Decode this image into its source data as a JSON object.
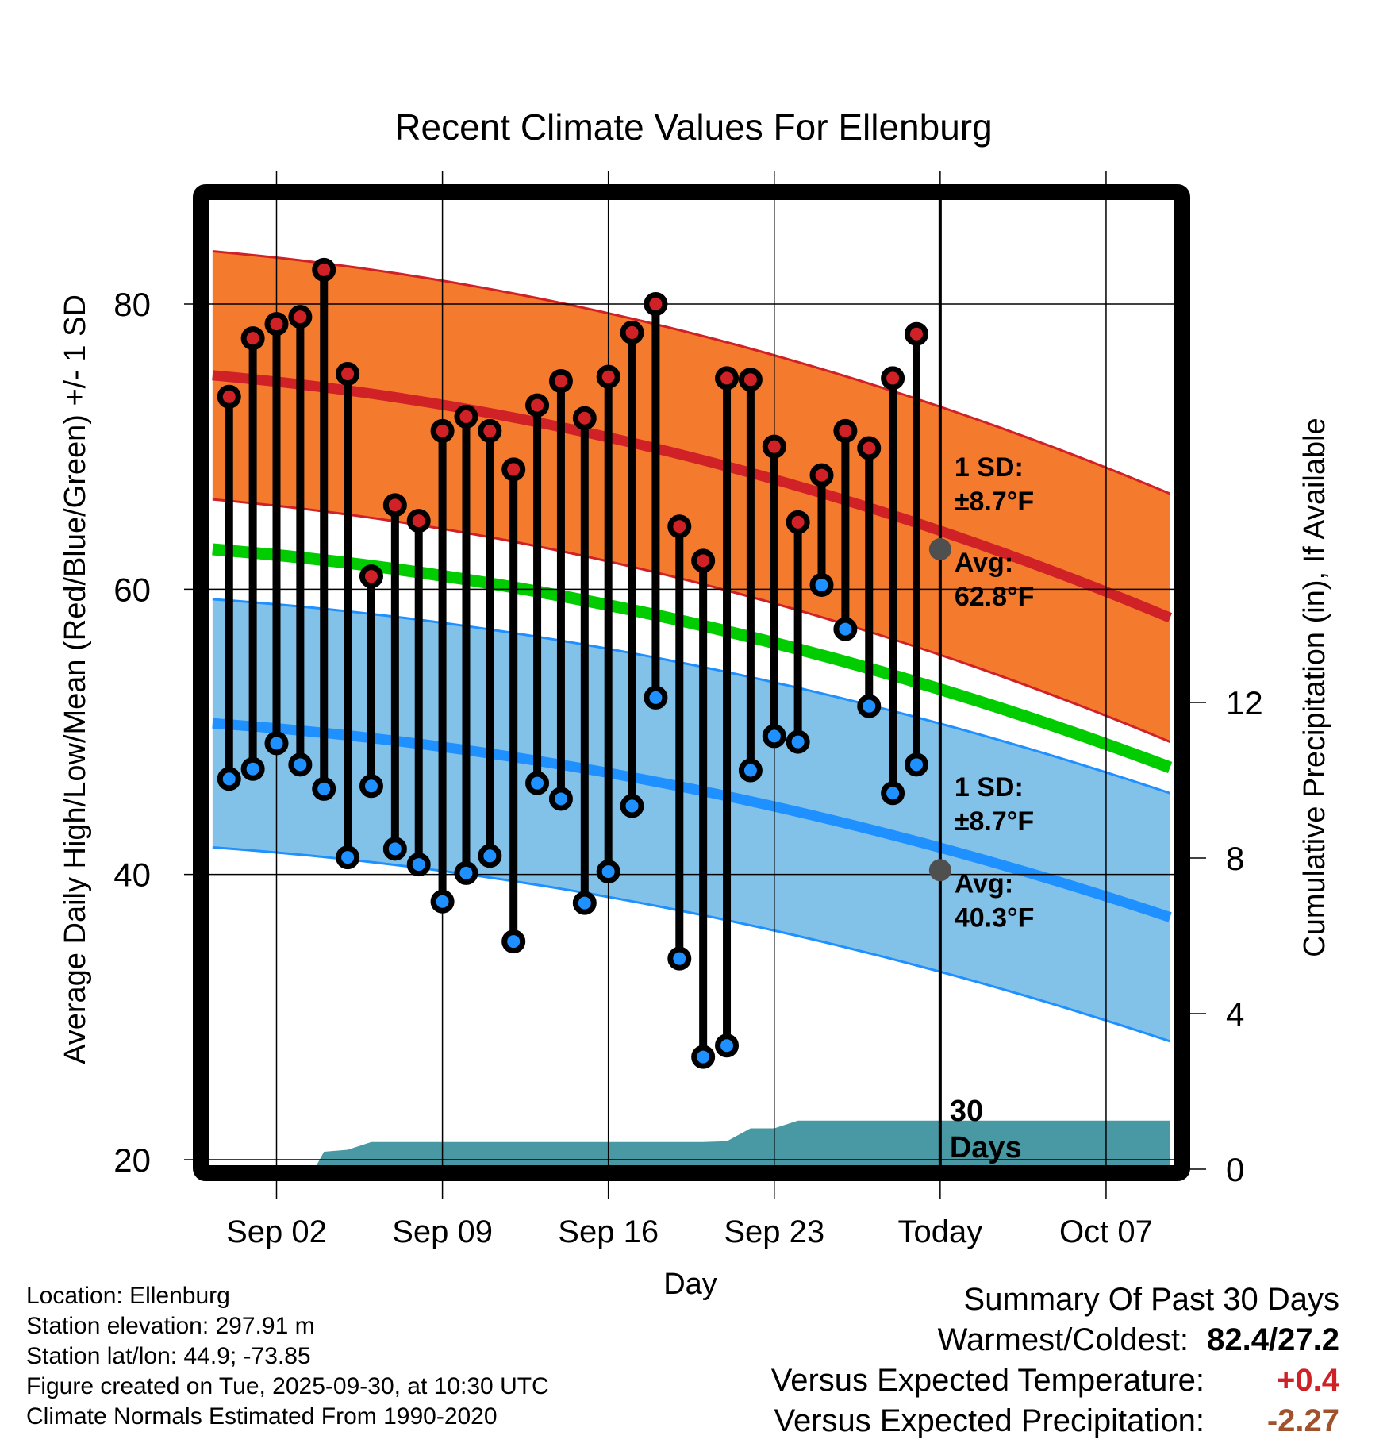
{
  "chart_data": {
    "type": "line",
    "title": "Recent Climate Values For Ellenburg",
    "xlabel": "Day",
    "ylabel": "Average Daily High/Low/Mean (Red/Blue/Green) +/- 1 SD",
    "y2label": "Cumulative Precipitation (in), If Available",
    "ylim": [
      20,
      86
    ],
    "y2lim": [
      0,
      17
    ],
    "yticks": [
      20,
      40,
      60,
      80
    ],
    "y2ticks": [
      0,
      4,
      8,
      12
    ],
    "xtick_labels": [
      "Sep 02",
      "Sep 09",
      "Sep 16",
      "Sep 23",
      "Today",
      "Oct 07"
    ],
    "xtick_day_offsets": [
      0,
      7,
      14,
      21,
      28,
      35
    ],
    "x_range_day_offsets": [
      -2.7,
      37.7
    ],
    "grid": true,
    "today_day_offset": 28,
    "today_label": "30\nDays",
    "observed": {
      "day_offsets": [
        -2,
        -1,
        0,
        1,
        2,
        3,
        4,
        5,
        6,
        7,
        8,
        9,
        10,
        11,
        12,
        13,
        14,
        15,
        16,
        17,
        18,
        19,
        20,
        21,
        22,
        23,
        24,
        25,
        26,
        27
      ],
      "high": [
        73.5,
        77.6,
        78.6,
        79.1,
        82.4,
        75.1,
        60.9,
        65.9,
        64.8,
        71.1,
        72.1,
        71.1,
        68.4,
        72.9,
        74.6,
        72.0,
        74.9,
        78.0,
        80.0,
        64.4,
        62.0,
        74.8,
        74.7,
        70.0,
        64.7,
        68.0,
        71.1,
        69.9,
        74.8,
        77.9
      ],
      "low": [
        46.7,
        47.4,
        49.2,
        47.7,
        46.0,
        41.2,
        46.2,
        41.8,
        40.7,
        38.1,
        40.1,
        41.3,
        35.3,
        46.4,
        45.3,
        38.0,
        40.2,
        44.8,
        52.4,
        34.1,
        27.2,
        28.0,
        47.3,
        49.7,
        49.3,
        60.3,
        57.2,
        51.8,
        45.7,
        47.7
      ]
    },
    "normals": {
      "day_offsets": [
        -2.7,
        37.7
      ],
      "high_mean": [
        75.0,
        58.0
      ],
      "low_mean": [
        50.6,
        37.0
      ],
      "mean": [
        62.8,
        47.5
      ],
      "sd": 8.7
    },
    "precip_cumulative": {
      "day_offsets": [
        -2,
        -1,
        0,
        1,
        1.6,
        2,
        3,
        4,
        5,
        6,
        7,
        8,
        9,
        10,
        11,
        12,
        13,
        14,
        15,
        16,
        17,
        18,
        19,
        20,
        21,
        22,
        23,
        24,
        25,
        26,
        27,
        37.7
      ],
      "values": [
        0,
        0,
        0,
        0,
        0,
        0.45,
        0.5,
        0.7,
        0.7,
        0.7,
        0.7,
        0.7,
        0.7,
        0.7,
        0.7,
        0.7,
        0.7,
        0.7,
        0.7,
        0.7,
        0.7,
        0.7,
        0.72,
        1.05,
        1.05,
        1.25,
        1.25,
        1.25,
        1.25,
        1.25,
        1.25,
        1.25
      ]
    },
    "annotations": {
      "high": {
        "sd_label": "1 SD:",
        "sd_value": "±8.7°F",
        "avg_label": "Avg:",
        "avg_value": "62.8°F",
        "avg": 62.8
      },
      "low": {
        "sd_label": "1 SD:",
        "sd_value": "±8.7°F",
        "avg_label": "Avg:",
        "avg_value": "40.3°F",
        "avg": 40.3
      }
    },
    "colors": {
      "high_band": "#F47A2E",
      "high_line": "#D02127",
      "low_band": "#82C1E8",
      "low_line": "#1E90FF",
      "mean_line": "#00CC00",
      "precip": "#4899A3",
      "annotation": "#4F4F4F"
    }
  },
  "info": {
    "location": "Location: Ellenburg",
    "elevation": "Station elevation: 297.91 m",
    "latlon": "Station lat/lon: 44.9; -73.85",
    "created": "Figure created on Tue, 2025-09-30, at 10:30 UTC",
    "normals": "Climate Normals Estimated From 1990-2020"
  },
  "summary": {
    "title": "Summary Of Past 30 Days",
    "warmest_label": "Warmest/Coldest:",
    "warmest_value": "82.4/27.2",
    "temp_label": "Versus Expected Temperature:",
    "temp_value": "+0.4",
    "temp_color": "#D02127",
    "precip_label": "Versus Expected Precipitation:",
    "precip_value": "-2.27",
    "precip_color": "#A0522D"
  }
}
